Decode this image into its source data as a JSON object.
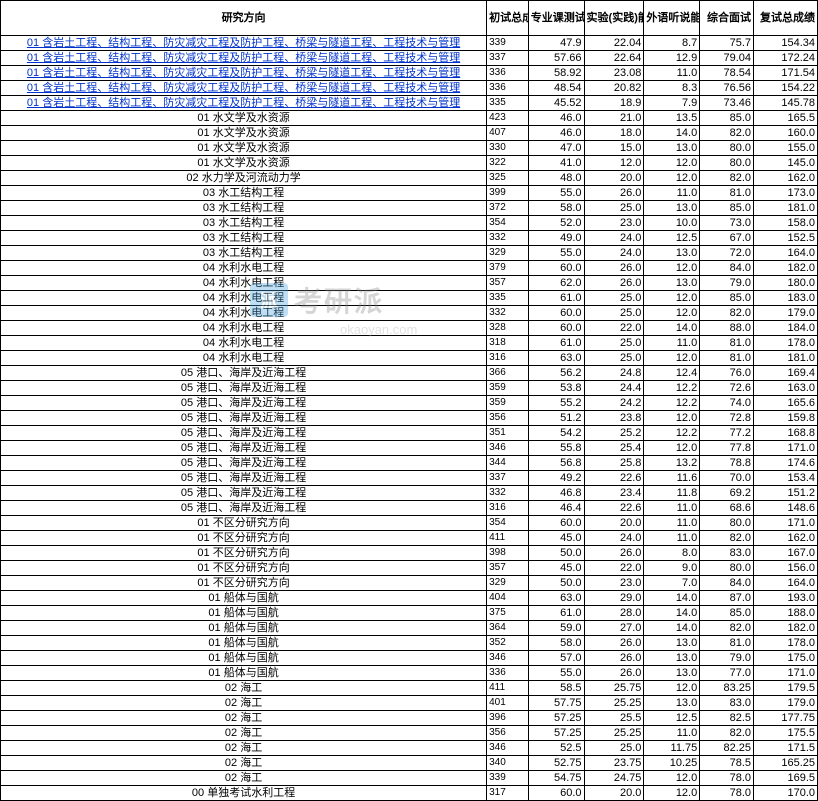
{
  "headers": {
    "direction": "研究方向",
    "init_sum": "初试总成",
    "zyk": "专业课测试",
    "sy": "实验(实践)能力",
    "wy": "外语听说能力",
    "zh": "综合面试",
    "fs": "复试总成绩"
  },
  "watermark": {
    "badge": "派",
    "text": "考研派",
    "sub": "okaoyan.com"
  },
  "rows": [
    {
      "d": "01 含岩土工程、结构工程、防灾减灾工程及防护工程、桥梁与隧道工程、工程技术与管理",
      "i": "339",
      "z": "47.9",
      "s": "22.04",
      "w": "8.7",
      "c": "75.7",
      "f": "154.34",
      "link": true
    },
    {
      "d": "01 含岩土工程、结构工程、防灾减灾工程及防护工程、桥梁与隧道工程、工程技术与管理",
      "i": "337",
      "z": "57.66",
      "s": "22.64",
      "w": "12.9",
      "c": "79.04",
      "f": "172.24",
      "link": true
    },
    {
      "d": "01 含岩土工程、结构工程、防灾减灾工程及防护工程、桥梁与隧道工程、工程技术与管理",
      "i": "336",
      "z": "58.92",
      "s": "23.08",
      "w": "11.0",
      "c": "78.54",
      "f": "171.54",
      "link": true
    },
    {
      "d": "01 含岩土工程、结构工程、防灾减灾工程及防护工程、桥梁与隧道工程、工程技术与管理",
      "i": "336",
      "z": "48.54",
      "s": "20.82",
      "w": "8.3",
      "c": "76.56",
      "f": "154.22",
      "link": true
    },
    {
      "d": "01 含岩土工程、结构工程、防灾减灾工程及防护工程、桥梁与隧道工程、工程技术与管理",
      "i": "335",
      "z": "45.52",
      "s": "18.9",
      "w": "7.9",
      "c": "73.46",
      "f": "145.78",
      "link": true
    },
    {
      "d": "01 水文学及水资源",
      "i": "423",
      "z": "46.0",
      "s": "21.0",
      "w": "13.5",
      "c": "85.0",
      "f": "165.5"
    },
    {
      "d": "01 水文学及水资源",
      "i": "407",
      "z": "46.0",
      "s": "18.0",
      "w": "14.0",
      "c": "82.0",
      "f": "160.0"
    },
    {
      "d": "01 水文学及水资源",
      "i": "330",
      "z": "47.0",
      "s": "15.0",
      "w": "13.0",
      "c": "80.0",
      "f": "155.0"
    },
    {
      "d": "01 水文学及水资源",
      "i": "322",
      "z": "41.0",
      "s": "12.0",
      "w": "12.0",
      "c": "80.0",
      "f": "145.0"
    },
    {
      "d": "02 水力学及河流动力学",
      "i": "325",
      "z": "48.0",
      "s": "20.0",
      "w": "12.0",
      "c": "82.0",
      "f": "162.0"
    },
    {
      "d": "03 水工结构工程",
      "i": "399",
      "z": "55.0",
      "s": "26.0",
      "w": "11.0",
      "c": "81.0",
      "f": "173.0"
    },
    {
      "d": "03 水工结构工程",
      "i": "372",
      "z": "58.0",
      "s": "25.0",
      "w": "13.0",
      "c": "85.0",
      "f": "181.0"
    },
    {
      "d": "03 水工结构工程",
      "i": "354",
      "z": "52.0",
      "s": "23.0",
      "w": "10.0",
      "c": "73.0",
      "f": "158.0"
    },
    {
      "d": "03 水工结构工程",
      "i": "332",
      "z": "49.0",
      "s": "24.0",
      "w": "12.5",
      "c": "67.0",
      "f": "152.5"
    },
    {
      "d": "03 水工结构工程",
      "i": "329",
      "z": "55.0",
      "s": "24.0",
      "w": "13.0",
      "c": "72.0",
      "f": "164.0"
    },
    {
      "d": "04 水利水电工程",
      "i": "379",
      "z": "60.0",
      "s": "26.0",
      "w": "12.0",
      "c": "84.0",
      "f": "182.0"
    },
    {
      "d": "04 水利水电工程",
      "i": "357",
      "z": "62.0",
      "s": "26.0",
      "w": "13.0",
      "c": "79.0",
      "f": "180.0"
    },
    {
      "d": "04 水利水电工程",
      "i": "335",
      "z": "61.0",
      "s": "25.0",
      "w": "12.0",
      "c": "85.0",
      "f": "183.0"
    },
    {
      "d": "04 水利水电工程",
      "i": "332",
      "z": "60.0",
      "s": "25.0",
      "w": "12.0",
      "c": "82.0",
      "f": "179.0"
    },
    {
      "d": "04 水利水电工程",
      "i": "328",
      "z": "60.0",
      "s": "22.0",
      "w": "14.0",
      "c": "88.0",
      "f": "184.0"
    },
    {
      "d": "04 水利水电工程",
      "i": "318",
      "z": "61.0",
      "s": "25.0",
      "w": "11.0",
      "c": "81.0",
      "f": "178.0"
    },
    {
      "d": "04 水利水电工程",
      "i": "316",
      "z": "63.0",
      "s": "25.0",
      "w": "12.0",
      "c": "81.0",
      "f": "181.0"
    },
    {
      "d": "05 港口、海岸及近海工程",
      "i": "366",
      "z": "56.2",
      "s": "24.8",
      "w": "12.4",
      "c": "76.0",
      "f": "169.4"
    },
    {
      "d": "05 港口、海岸及近海工程",
      "i": "359",
      "z": "53.8",
      "s": "24.4",
      "w": "12.2",
      "c": "72.6",
      "f": "163.0"
    },
    {
      "d": "05 港口、海岸及近海工程",
      "i": "359",
      "z": "55.2",
      "s": "24.2",
      "w": "12.2",
      "c": "74.0",
      "f": "165.6"
    },
    {
      "d": "05 港口、海岸及近海工程",
      "i": "356",
      "z": "51.2",
      "s": "23.8",
      "w": "12.0",
      "c": "72.8",
      "f": "159.8"
    },
    {
      "d": "05 港口、海岸及近海工程",
      "i": "351",
      "z": "54.2",
      "s": "25.2",
      "w": "12.2",
      "c": "77.2",
      "f": "168.8"
    },
    {
      "d": "05 港口、海岸及近海工程",
      "i": "346",
      "z": "55.8",
      "s": "25.4",
      "w": "12.0",
      "c": "77.8",
      "f": "171.0"
    },
    {
      "d": "05 港口、海岸及近海工程",
      "i": "344",
      "z": "56.8",
      "s": "25.8",
      "w": "13.2",
      "c": "78.8",
      "f": "174.6"
    },
    {
      "d": "05 港口、海岸及近海工程",
      "i": "337",
      "z": "49.2",
      "s": "22.6",
      "w": "11.6",
      "c": "70.0",
      "f": "153.4"
    },
    {
      "d": "05 港口、海岸及近海工程",
      "i": "332",
      "z": "46.8",
      "s": "23.4",
      "w": "11.8",
      "c": "69.2",
      "f": "151.2"
    },
    {
      "d": "05 港口、海岸及近海工程",
      "i": "316",
      "z": "46.4",
      "s": "22.6",
      "w": "11.0",
      "c": "68.6",
      "f": "148.6"
    },
    {
      "d": "01 不区分研究方向",
      "i": "354",
      "z": "60.0",
      "s": "20.0",
      "w": "11.0",
      "c": "80.0",
      "f": "171.0"
    },
    {
      "d": "01 不区分研究方向",
      "i": "411",
      "z": "45.0",
      "s": "24.0",
      "w": "11.0",
      "c": "82.0",
      "f": "162.0"
    },
    {
      "d": "01 不区分研究方向",
      "i": "398",
      "z": "50.0",
      "s": "26.0",
      "w": "8.0",
      "c": "83.0",
      "f": "167.0"
    },
    {
      "d": "01 不区分研究方向",
      "i": "357",
      "z": "45.0",
      "s": "22.0",
      "w": "9.0",
      "c": "80.0",
      "f": "156.0"
    },
    {
      "d": "01 不区分研究方向",
      "i": "329",
      "z": "50.0",
      "s": "23.0",
      "w": "7.0",
      "c": "84.0",
      "f": "164.0"
    },
    {
      "d": "01 船体与国航",
      "i": "404",
      "z": "63.0",
      "s": "29.0",
      "w": "14.0",
      "c": "87.0",
      "f": "193.0"
    },
    {
      "d": "01 船体与国航",
      "i": "375",
      "z": "61.0",
      "s": "28.0",
      "w": "14.0",
      "c": "85.0",
      "f": "188.0"
    },
    {
      "d": "01 船体与国航",
      "i": "364",
      "z": "59.0",
      "s": "27.0",
      "w": "14.0",
      "c": "82.0",
      "f": "182.0"
    },
    {
      "d": "01 船体与国航",
      "i": "352",
      "z": "58.0",
      "s": "26.0",
      "w": "13.0",
      "c": "81.0",
      "f": "178.0"
    },
    {
      "d": "01 船体与国航",
      "i": "346",
      "z": "57.0",
      "s": "26.0",
      "w": "13.0",
      "c": "79.0",
      "f": "175.0"
    },
    {
      "d": "01 船体与国航",
      "i": "336",
      "z": "55.0",
      "s": "26.0",
      "w": "13.0",
      "c": "77.0",
      "f": "171.0"
    },
    {
      "d": "02 海工",
      "i": "411",
      "z": "58.5",
      "s": "25.75",
      "w": "12.0",
      "c": "83.25",
      "f": "179.5"
    },
    {
      "d": "02 海工",
      "i": "401",
      "z": "57.75",
      "s": "25.25",
      "w": "13.0",
      "c": "83.0",
      "f": "179.0"
    },
    {
      "d": "02 海工",
      "i": "396",
      "z": "57.25",
      "s": "25.5",
      "w": "12.5",
      "c": "82.5",
      "f": "177.75"
    },
    {
      "d": "02 海工",
      "i": "356",
      "z": "57.25",
      "s": "25.25",
      "w": "11.0",
      "c": "82.0",
      "f": "175.5"
    },
    {
      "d": "02 海工",
      "i": "346",
      "z": "52.5",
      "s": "25.0",
      "w": "11.75",
      "c": "82.25",
      "f": "171.5"
    },
    {
      "d": "02 海工",
      "i": "340",
      "z": "52.75",
      "s": "23.75",
      "w": "10.25",
      "c": "78.5",
      "f": "165.25"
    },
    {
      "d": "02 海工",
      "i": "339",
      "z": "54.75",
      "s": "24.75",
      "w": "12.0",
      "c": "78.0",
      "f": "169.5"
    },
    {
      "d": "00 单独考试水利工程",
      "i": "317",
      "z": "60.0",
      "s": "20.0",
      "w": "12.0",
      "c": "78.0",
      "f": "170.0"
    }
  ]
}
